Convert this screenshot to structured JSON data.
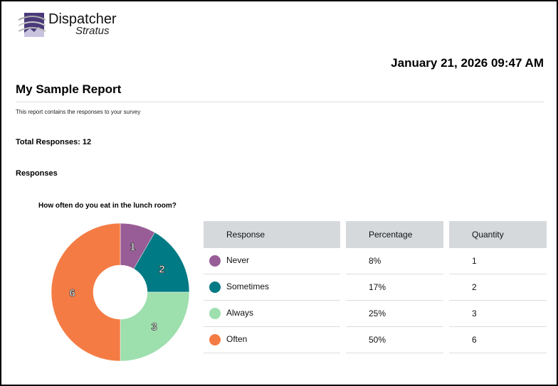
{
  "logo": {
    "line1": "Dispatcher",
    "line2": "Stratus"
  },
  "date": "January 21, 2026 09:47 AM",
  "title": "My Sample Report",
  "description": "This report contains the responses to your survey",
  "total": "Total Responses: 12",
  "responses_heading": "Responses",
  "chart_data": {
    "type": "pie",
    "donut": true,
    "title": "How often do you eat in the lunch room?",
    "categories": [
      "Never",
      "Sometimes",
      "Always",
      "Often"
    ],
    "values": [
      1,
      2,
      3,
      6
    ],
    "colors": [
      "#985d97",
      "#007a84",
      "#9ddfad",
      "#f47c44"
    ]
  },
  "table": {
    "headers": [
      "Response",
      "Percentage",
      "Quantity"
    ],
    "rows": [
      {
        "response": "Never",
        "percentage": "8%",
        "quantity": "1"
      },
      {
        "response": "Sometimes",
        "percentage": "17%",
        "quantity": "2"
      },
      {
        "response": "Always",
        "percentage": "25%",
        "quantity": "3"
      },
      {
        "response": "Often",
        "percentage": "50%",
        "quantity": "6"
      }
    ]
  }
}
